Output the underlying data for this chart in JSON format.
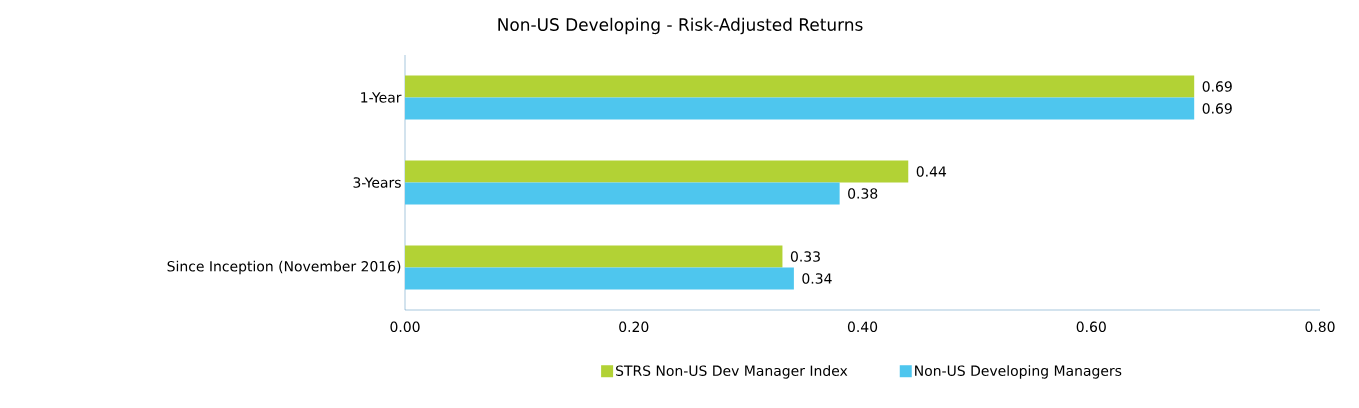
{
  "chart_data": {
    "type": "bar",
    "orientation": "horizontal",
    "title": "Non-US Developing - Risk-Adjusted Returns",
    "categories": [
      "1-Year",
      "3-Years",
      "Since Inception (November 2016)"
    ],
    "series": [
      {
        "name": "STRS Non-US Dev Manager Index",
        "color": "#b2d235",
        "values": [
          0.69,
          0.44,
          0.33
        ]
      },
      {
        "name": "Non-US Developing Managers",
        "color": "#4ec6ee",
        "values": [
          0.69,
          0.38,
          0.34
        ]
      }
    ],
    "xlim": [
      0,
      0.8
    ],
    "xticks": [
      {
        "value": 0,
        "label": "0.00"
      },
      {
        "value": 0.2,
        "label": "0.20"
      },
      {
        "value": 0.4,
        "label": "0.40"
      },
      {
        "value": 0.6,
        "label": "0.60"
      },
      {
        "value": 0.8,
        "label": "0.80"
      }
    ],
    "data_labels": true,
    "legend": "bottom",
    "grid": false
  }
}
